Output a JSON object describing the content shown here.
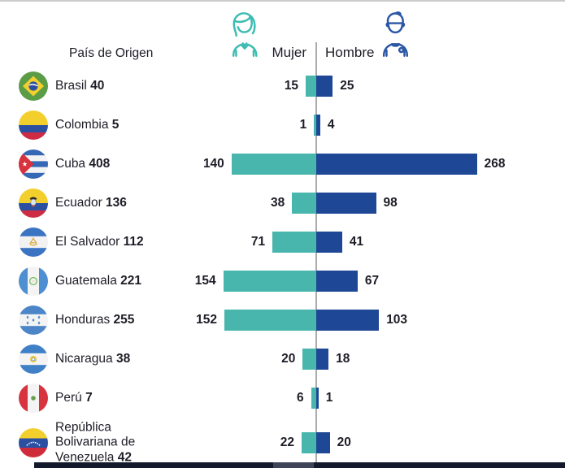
{
  "header": {
    "country_column_label": "País de Origen",
    "legend_female": "Mujer",
    "legend_male": "Hombre"
  },
  "colors": {
    "female": "#48B6AD",
    "male": "#1E4795",
    "female_icon": "#3DBCB1",
    "male_icon": "#2A56A5",
    "text": "#1D1D27",
    "divider": "#ABABAB",
    "footer_bar": "#131A2B"
  },
  "chart_data": {
    "type": "bar",
    "variant": "diverging-horizontal",
    "title": "",
    "xlabel": "País de Origen",
    "ylabel": "",
    "legend_position": "top",
    "axis_ticks": "none (values labeled on bars)",
    "categories": [
      "Brasil",
      "Colombia",
      "Cuba",
      "Ecuador",
      "El Salvador",
      "Guatemala",
      "Honduras",
      "Nicaragua",
      "Perú",
      "República Bolivariana de Venezuela"
    ],
    "totals": [
      40,
      5,
      408,
      136,
      112,
      221,
      255,
      38,
      7,
      42
    ],
    "series": [
      {
        "name": "Mujer",
        "color": "#48B6AD",
        "values": [
          15,
          1,
          140,
          38,
          71,
          154,
          152,
          20,
          6,
          22
        ]
      },
      {
        "name": "Hombre",
        "color": "#1E4795",
        "values": [
          25,
          4,
          268,
          98,
          41,
          67,
          103,
          18,
          1,
          20
        ]
      }
    ]
  }
}
